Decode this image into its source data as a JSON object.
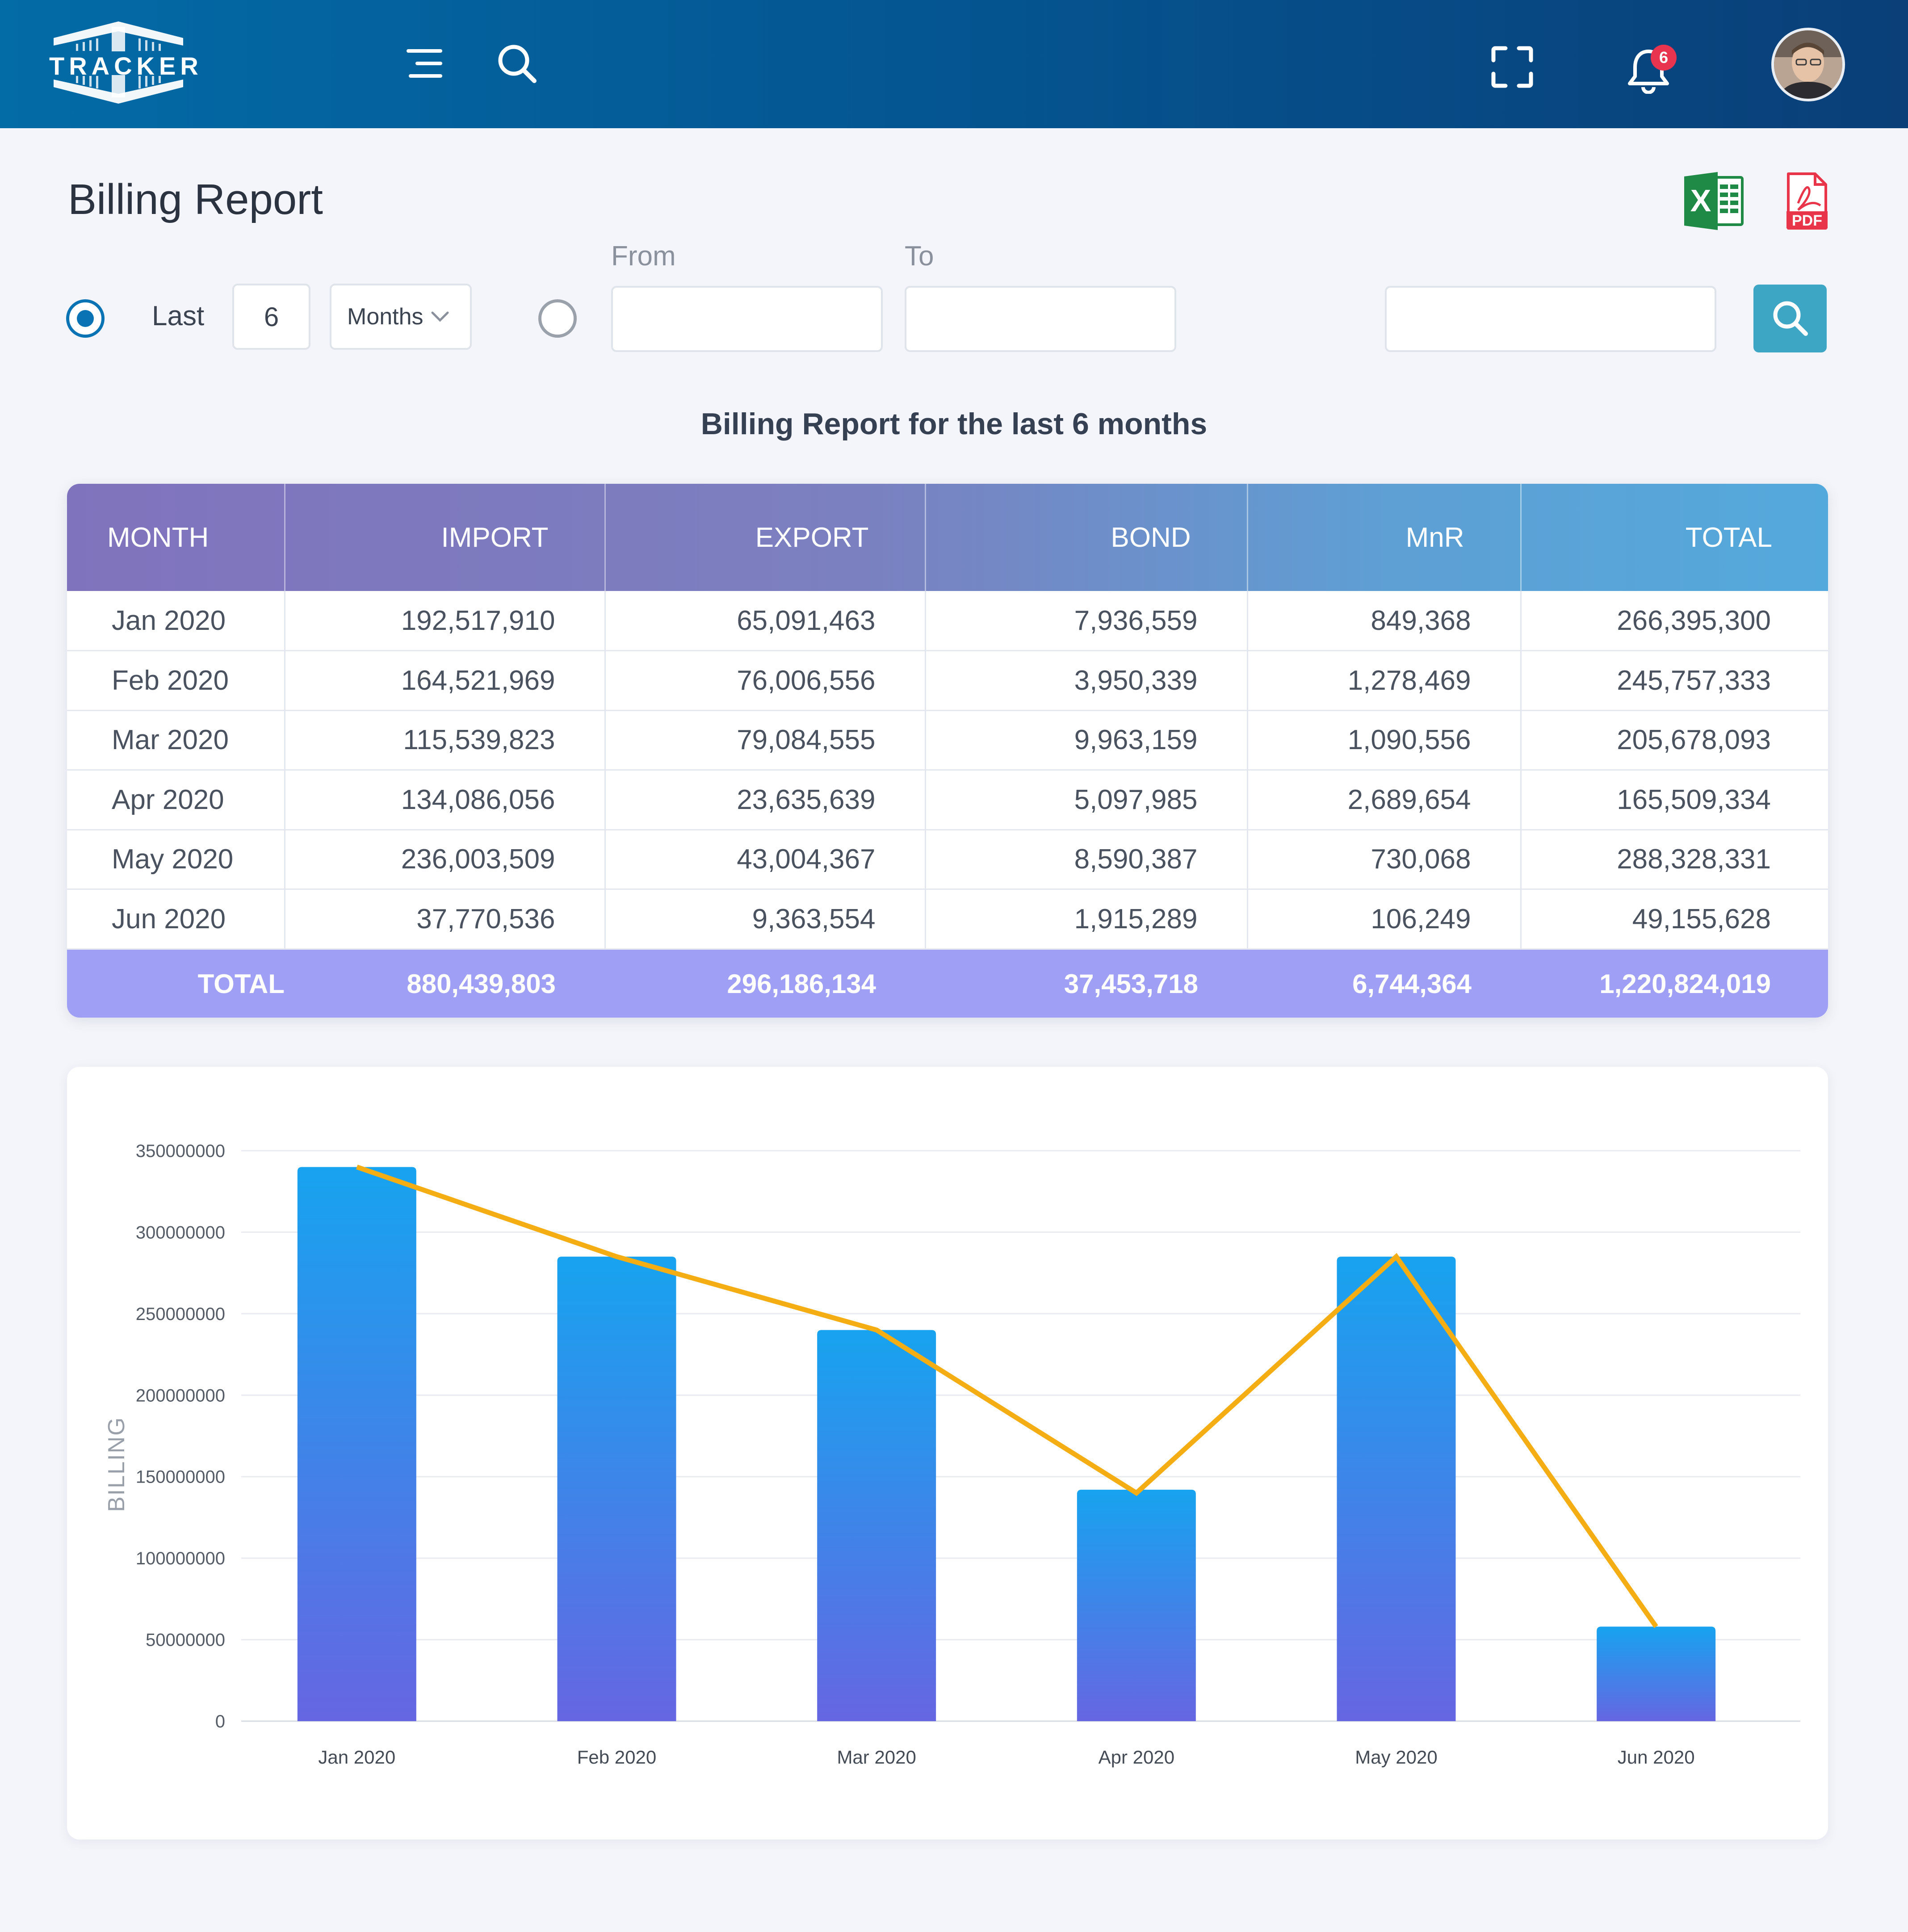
{
  "header": {
    "logo_text": "TRACKER",
    "notification_count": "6",
    "icons": [
      "menu-icon",
      "search-icon",
      "fullscreen-icon",
      "bell-icon",
      "avatar"
    ]
  },
  "page": {
    "title": "Billing Report",
    "export_icons": [
      "excel-icon",
      "pdf-icon"
    ],
    "pdf_label": "PDF",
    "excel_label": "X"
  },
  "filters": {
    "mode_selected": "last",
    "last_label": "Last",
    "last_value": "6",
    "unit_selected": "Months",
    "from_label": "From",
    "to_label": "To",
    "from_value": "",
    "to_value": "",
    "search_value": ""
  },
  "report": {
    "heading": "Billing Report for the last 6 months"
  },
  "table": {
    "columns": [
      "MONTH",
      "IMPORT",
      "EXPORT",
      "BOND",
      "MnR",
      "TOTAL"
    ],
    "rows": [
      [
        "Jan 2020",
        "192,517,910",
        "65,091,463",
        "7,936,559",
        "849,368",
        "266,395,300"
      ],
      [
        "Feb 2020",
        "164,521,969",
        "76,006,556",
        "3,950,339",
        "1,278,469",
        "245,757,333"
      ],
      [
        "Mar 2020",
        "115,539,823",
        "79,084,555",
        "9,963,159",
        "1,090,556",
        "205,678,093"
      ],
      [
        "Apr 2020",
        "134,086,056",
        "23,635,639",
        "5,097,985",
        "2,689,654",
        "165,509,334"
      ],
      [
        "May 2020",
        "236,003,509",
        "43,004,367",
        "8,590,387",
        "730,068",
        "288,328,331"
      ],
      [
        "Jun 2020",
        "37,770,536",
        "9,363,554",
        "1,915,289",
        "106,249",
        "49,155,628"
      ]
    ],
    "totals": [
      "TOTAL",
      "880,439,803",
      "296,186,134",
      "37,453,718",
      "6,744,364",
      "1,220,824,019"
    ]
  },
  "chart_data": {
    "type": "bar",
    "categories": [
      "Jan 2020",
      "Feb 2020",
      "Mar 2020",
      "Apr 2020",
      "May 2020",
      "Jun 2020"
    ],
    "series": [
      {
        "type": "bar",
        "values": [
          340000000,
          285000000,
          240000000,
          142000000,
          285000000,
          58000000
        ],
        "color": "#1ba3ee"
      },
      {
        "type": "line",
        "values": [
          340000000,
          285000000,
          240000000,
          140000000,
          285000000,
          58000000
        ],
        "color": "#f5ad14"
      }
    ],
    "ylabel": "BILLING",
    "ylim": [
      0,
      350000000
    ],
    "yticks": [
      "0",
      "50000000",
      "100000000",
      "150000000",
      "200000000",
      "250000000",
      "300000000",
      "350000000"
    ],
    "grid": true
  }
}
